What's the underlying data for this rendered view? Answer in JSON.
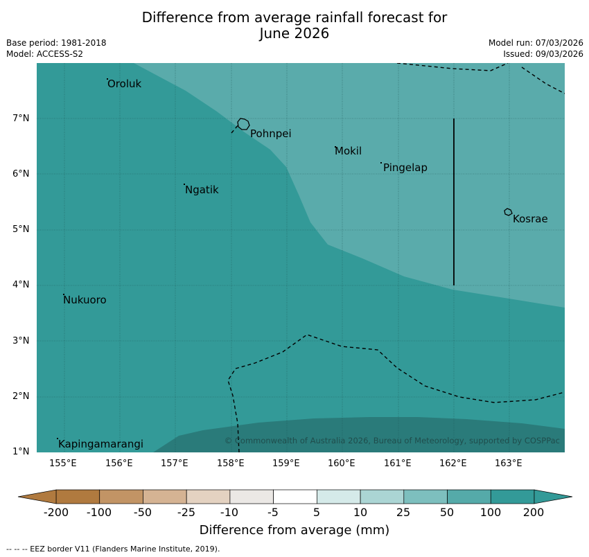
{
  "title_line1": "Difference from average rainfall forecast for",
  "title_line2": "June 2026",
  "meta": {
    "base_period": "Base period: 1981-2018",
    "model": "Model: ACCESS-S2",
    "model_run": "Model run: 07/03/2026",
    "issued": "Issued: 09/03/2026"
  },
  "map": {
    "lon_ticks": [
      "155°E",
      "156°E",
      "157°E",
      "158°E",
      "159°E",
      "160°E",
      "161°E",
      "162°E",
      "163°E"
    ],
    "lat_ticks": [
      "7°N",
      "6°N",
      "5°N",
      "4°N",
      "3°N",
      "2°N",
      "1°N"
    ],
    "places": [
      "Oroluk",
      "Pohnpei",
      "Mokil",
      "Pingelap",
      "Ngatik",
      "Kosrae",
      "Nukuoro",
      "Kapingamarangi"
    ],
    "copyright": "© Commonwealth of Australia 2026, Bureau of Meteorology, supported by COSPPac",
    "colors": {
      "band_50_100": "#5aabab",
      "band_100_200": "#339a98",
      "band_above_200": "#2a7b7a"
    }
  },
  "colorbar": {
    "labels": [
      "-200",
      "-100",
      "-50",
      "-25",
      "-10",
      "-5",
      "5",
      "10",
      "25",
      "50",
      "100",
      "200"
    ],
    "colors": [
      "#b07a3f",
      "#c29465",
      "#d5b393",
      "#e4d2c1",
      "#ebe8e5",
      "#ffffff",
      "#d5eae9",
      "#abd5d4",
      "#7dbfbe",
      "#55aaa9",
      "#339a98"
    ],
    "title": "Difference from average (mm)"
  },
  "footnote": "--  --  -- EEZ border V11 (Flanders Marine Institute, 2019)."
}
